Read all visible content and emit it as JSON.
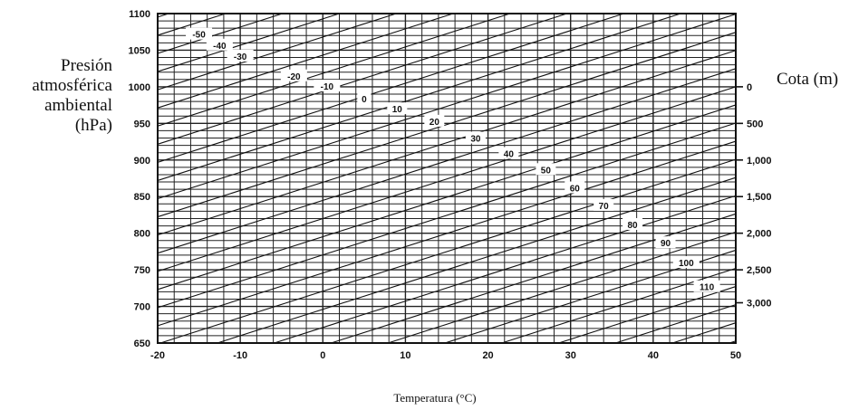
{
  "chart_data": {
    "type": "line",
    "ylabel_lines": [
      "Presión",
      "atmosférica",
      "ambiental",
      "(hPa)"
    ],
    "xlabel": "Temperatura (°C)",
    "y2label": "Cota (m)",
    "xlim": [
      -20,
      50
    ],
    "ylim": [
      650,
      1100
    ],
    "x_ticks": [
      "-20",
      "-10",
      "0",
      "10",
      "20",
      "30",
      "40",
      "50"
    ],
    "y_ticks": [
      "1100",
      "1050",
      "1000",
      "950",
      "900",
      "850",
      "800",
      "750",
      "700",
      "650"
    ],
    "y_tick_values": [
      1100,
      1050,
      1000,
      950,
      900,
      850,
      800,
      750,
      700,
      650
    ],
    "y2_ticks": [
      {
        "label": "0",
        "pressure": 1000
      },
      {
        "label": "500",
        "pressure": 950
      },
      {
        "label": "1,000",
        "pressure": 900
      },
      {
        "label": "1,500",
        "pressure": 850
      },
      {
        "label": "2,000",
        "pressure": 800
      },
      {
        "label": "2,500",
        "pressure": 750
      },
      {
        "label": "3,000",
        "pressure": 705
      }
    ],
    "grid": true,
    "curve_labels": [
      {
        "label": "-50",
        "x": -15,
        "y": 1072
      },
      {
        "label": "-40",
        "x": -12.5,
        "y": 1057
      },
      {
        "label": "-30",
        "x": -10,
        "y": 1042
      },
      {
        "label": "-20",
        "x": -3.5,
        "y": 1015
      },
      {
        "label": "-10",
        "x": 0.5,
        "y": 1001
      },
      {
        "label": "0",
        "x": 5,
        "y": 984
      },
      {
        "label": "10",
        "x": 9,
        "y": 970
      },
      {
        "label": "20",
        "x": 13.5,
        "y": 953
      },
      {
        "label": "30",
        "x": 18.5,
        "y": 930
      },
      {
        "label": "40",
        "x": 22.5,
        "y": 909
      },
      {
        "label": "50",
        "x": 27,
        "y": 887
      },
      {
        "label": "60",
        "x": 30.5,
        "y": 862
      },
      {
        "label": "70",
        "x": 34,
        "y": 838
      },
      {
        "label": "80",
        "x": 37.5,
        "y": 812
      },
      {
        "label": "90",
        "x": 41.5,
        "y": 787
      },
      {
        "label": "100",
        "x": 44,
        "y": 760
      },
      {
        "label": "110",
        "x": 46.5,
        "y": 727
      }
    ]
  }
}
